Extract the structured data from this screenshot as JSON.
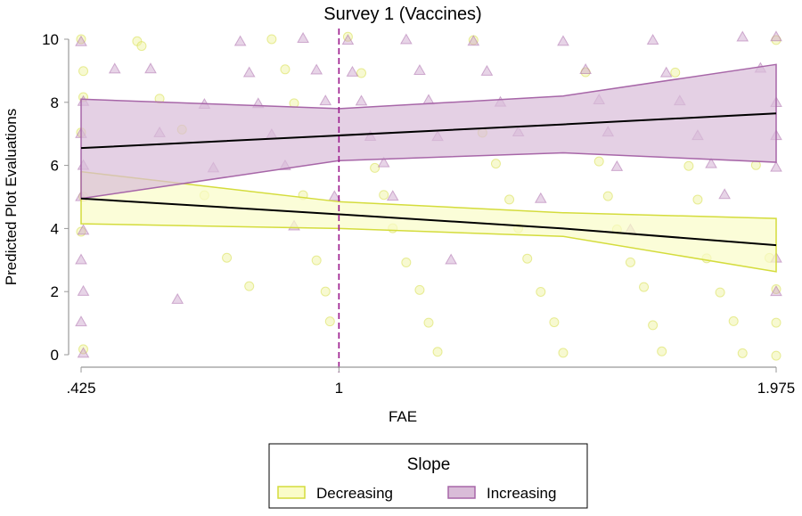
{
  "chart_data": {
    "type": "scatter",
    "title": "Survey 1 (Vaccines)",
    "xlabel": "FAE",
    "ylabel": "Predicted Plot Evaluations",
    "xlim": [
      0.425,
      1.975
    ],
    "ylim": [
      0,
      10
    ],
    "xticks": [
      {
        "value": 0.425,
        "label": ".425"
      },
      {
        "value": 1,
        "label": "1"
      },
      {
        "value": 1.975,
        "label": "1.975"
      }
    ],
    "yticks": [
      {
        "value": 0,
        "label": "0"
      },
      {
        "value": 2,
        "label": "2"
      },
      {
        "value": 4,
        "label": "4"
      },
      {
        "value": 6,
        "label": "6"
      },
      {
        "value": 8,
        "label": "8"
      },
      {
        "value": 10,
        "label": "10"
      }
    ],
    "reference_line_x": 1,
    "legend": {
      "title": "Slope",
      "placement": "bottom"
    },
    "series": [
      {
        "name": "Decreasing",
        "marker": "circle",
        "color": "#d4dc3c",
        "fill": "#fafcc8",
        "fit": {
          "x": [
            0.425,
            1,
            1.5,
            1.975
          ],
          "y": [
            4.95,
            4.45,
            4.0,
            3.47
          ]
        },
        "ci_lower": [
          4.15,
          4.0,
          3.75,
          2.63
        ],
        "ci_upper": [
          5.8,
          4.85,
          4.5,
          4.32
        ],
        "points": [
          [
            0.425,
            10
          ],
          [
            0.43,
            9
          ],
          [
            0.43,
            8.1
          ],
          [
            0.425,
            7
          ],
          [
            0.43,
            5
          ],
          [
            0.425,
            3.9
          ],
          [
            0.43,
            0.1
          ],
          [
            0.55,
            10
          ],
          [
            0.56,
            9.8
          ],
          [
            0.6,
            8.1
          ],
          [
            0.65,
            7.1
          ],
          [
            0.7,
            5.1
          ],
          [
            0.75,
            3.1
          ],
          [
            0.8,
            2.1
          ],
          [
            0.85,
            10
          ],
          [
            0.88,
            9
          ],
          [
            0.9,
            8
          ],
          [
            0.92,
            5
          ],
          [
            0.95,
            3
          ],
          [
            0.97,
            2
          ],
          [
            0.98,
            1
          ],
          [
            1.02,
            10
          ],
          [
            1.05,
            9
          ],
          [
            1.08,
            6
          ],
          [
            1.1,
            5
          ],
          [
            1.12,
            4
          ],
          [
            1.15,
            3
          ],
          [
            1.18,
            2
          ],
          [
            1.2,
            1
          ],
          [
            1.22,
            0.1
          ],
          [
            1.3,
            10
          ],
          [
            1.32,
            7
          ],
          [
            1.35,
            6
          ],
          [
            1.38,
            5
          ],
          [
            1.4,
            4
          ],
          [
            1.42,
            3
          ],
          [
            1.45,
            2
          ],
          [
            1.48,
            1
          ],
          [
            1.5,
            0
          ],
          [
            1.55,
            9
          ],
          [
            1.58,
            6.1
          ],
          [
            1.6,
            5
          ],
          [
            1.62,
            3.9
          ],
          [
            1.65,
            3
          ],
          [
            1.68,
            2.1
          ],
          [
            1.7,
            1
          ],
          [
            1.72,
            0.1
          ],
          [
            1.75,
            8.9
          ],
          [
            1.78,
            6
          ],
          [
            1.8,
            4.9
          ],
          [
            1.82,
            3.1
          ],
          [
            1.85,
            2
          ],
          [
            1.88,
            1
          ],
          [
            1.9,
            0
          ],
          [
            1.93,
            6
          ],
          [
            1.96,
            3
          ],
          [
            1.975,
            2
          ],
          [
            1.975,
            1
          ],
          [
            1.975,
            0
          ],
          [
            1.975,
            10
          ]
        ]
      },
      {
        "name": "Increasing",
        "marker": "triangle",
        "color": "#a766a8",
        "fill": "#d9bcd8",
        "fit": {
          "x": [
            0.425,
            1,
            1.5,
            1.975
          ],
          "y": [
            6.55,
            6.95,
            7.3,
            7.65
          ]
        },
        "ci_lower": [
          4.95,
          6.15,
          6.4,
          6.1
        ],
        "ci_upper": [
          8.1,
          7.8,
          8.2,
          9.2
        ],
        "points": [
          [
            0.425,
            10
          ],
          [
            0.43,
            8
          ],
          [
            0.425,
            7
          ],
          [
            0.43,
            6
          ],
          [
            0.425,
            5
          ],
          [
            0.43,
            4
          ],
          [
            0.425,
            3
          ],
          [
            0.43,
            2
          ],
          [
            0.425,
            1
          ],
          [
            0.43,
            0
          ],
          [
            0.5,
            9.1
          ],
          [
            0.58,
            9
          ],
          [
            0.6,
            7
          ],
          [
            0.64,
            1.8
          ],
          [
            0.7,
            8
          ],
          [
            0.72,
            6
          ],
          [
            0.78,
            10
          ],
          [
            0.8,
            9
          ],
          [
            0.82,
            8
          ],
          [
            0.85,
            7
          ],
          [
            0.88,
            6
          ],
          [
            0.9,
            4
          ],
          [
            0.92,
            10
          ],
          [
            0.95,
            9
          ],
          [
            0.97,
            8
          ],
          [
            0.99,
            5
          ],
          [
            1.02,
            10
          ],
          [
            1.03,
            9
          ],
          [
            1.05,
            8
          ],
          [
            1.07,
            7
          ],
          [
            1.1,
            6
          ],
          [
            1.12,
            5
          ],
          [
            1.15,
            10
          ],
          [
            1.18,
            9
          ],
          [
            1.2,
            8
          ],
          [
            1.22,
            7
          ],
          [
            1.25,
            3
          ],
          [
            1.3,
            10
          ],
          [
            1.33,
            9
          ],
          [
            1.36,
            8
          ],
          [
            1.4,
            7
          ],
          [
            1.45,
            5
          ],
          [
            1.5,
            10
          ],
          [
            1.55,
            9
          ],
          [
            1.58,
            8
          ],
          [
            1.6,
            7
          ],
          [
            1.62,
            6
          ],
          [
            1.65,
            4
          ],
          [
            1.7,
            10
          ],
          [
            1.73,
            9
          ],
          [
            1.76,
            8
          ],
          [
            1.8,
            7
          ],
          [
            1.83,
            6
          ],
          [
            1.86,
            5
          ],
          [
            1.9,
            10
          ],
          [
            1.94,
            9
          ],
          [
            1.975,
            8
          ],
          [
            1.975,
            7
          ],
          [
            1.975,
            6
          ],
          [
            1.975,
            3
          ],
          [
            1.975,
            2
          ],
          [
            1.975,
            10
          ]
        ]
      }
    ]
  }
}
